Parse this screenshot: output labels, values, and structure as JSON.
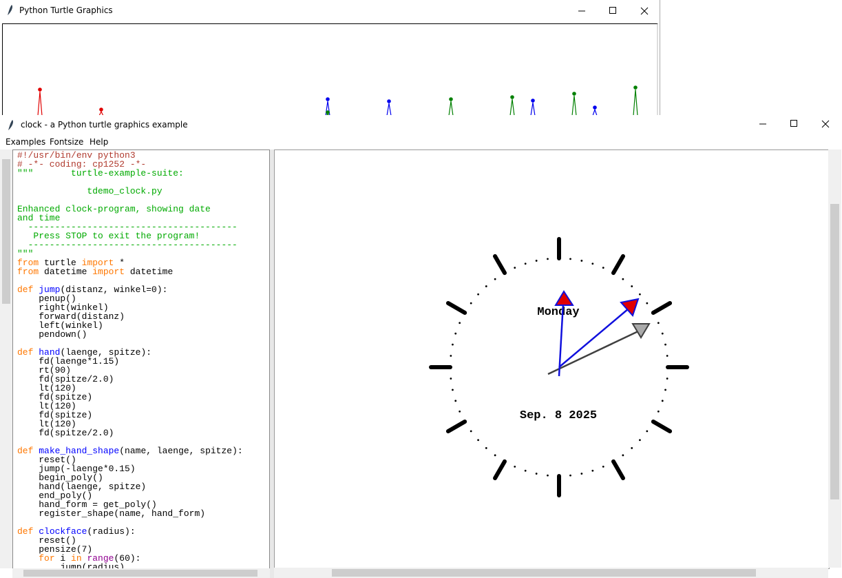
{
  "back_window": {
    "title": "Python Turtle Graphics"
  },
  "front_window": {
    "title": "clock - a Python turtle graphics example",
    "menu": [
      "Examples",
      "Fontsize",
      "Help"
    ],
    "code": [
      [
        {
          "text": "#!/usr/bin/env python3",
          "color": "#b03a2e"
        }
      ],
      [
        {
          "text": "# -*- coding: cp1252 -*-",
          "color": "#b03a2e"
        }
      ],
      [
        {
          "text": "\"\"\"       turtle-example-suite:",
          "color": "#00aa00"
        }
      ],
      [],
      [
        {
          "text": "             tdemo_clock.py",
          "color": "#00aa00"
        }
      ],
      [],
      [
        {
          "text": "Enhanced clock-program, showing date",
          "color": "#00aa00"
        }
      ],
      [
        {
          "text": "and time",
          "color": "#00aa00"
        }
      ],
      [
        {
          "text": "  ---------------------------------------",
          "color": "#00aa00"
        }
      ],
      [
        {
          "text": "   Press STOP to exit the program!",
          "color": "#00aa00"
        }
      ],
      [
        {
          "text": "  ---------------------------------------",
          "color": "#00aa00"
        }
      ],
      [
        {
          "text": "\"\"\"",
          "color": "#00aa00"
        }
      ],
      [
        {
          "text": "from",
          "color": "#ff7700"
        },
        {
          "text": " turtle "
        },
        {
          "text": "import",
          "color": "#ff7700"
        },
        {
          "text": " *"
        }
      ],
      [
        {
          "text": "from",
          "color": "#ff7700"
        },
        {
          "text": " datetime "
        },
        {
          "text": "import",
          "color": "#ff7700"
        },
        {
          "text": " datetime"
        }
      ],
      [],
      [
        {
          "text": "def",
          "color": "#ff7700"
        },
        {
          "text": " "
        },
        {
          "text": "jump",
          "color": "#0000ff"
        },
        {
          "text": "(distanz, winkel=0):"
        }
      ],
      [
        {
          "text": "    penup()"
        }
      ],
      [
        {
          "text": "    right(winkel)"
        }
      ],
      [
        {
          "text": "    forward(distanz)"
        }
      ],
      [
        {
          "text": "    left(winkel)"
        }
      ],
      [
        {
          "text": "    pendown()"
        }
      ],
      [],
      [
        {
          "text": "def",
          "color": "#ff7700"
        },
        {
          "text": " "
        },
        {
          "text": "hand",
          "color": "#0000ff"
        },
        {
          "text": "(laenge, spitze):"
        }
      ],
      [
        {
          "text": "    fd(laenge*1.15)"
        }
      ],
      [
        {
          "text": "    rt(90)"
        }
      ],
      [
        {
          "text": "    fd(spitze/2.0)"
        }
      ],
      [
        {
          "text": "    lt(120)"
        }
      ],
      [
        {
          "text": "    fd(spitze)"
        }
      ],
      [
        {
          "text": "    lt(120)"
        }
      ],
      [
        {
          "text": "    fd(spitze)"
        }
      ],
      [
        {
          "text": "    lt(120)"
        }
      ],
      [
        {
          "text": "    fd(spitze/2.0)"
        }
      ],
      [],
      [
        {
          "text": "def",
          "color": "#ff7700"
        },
        {
          "text": " "
        },
        {
          "text": "make_hand_shape",
          "color": "#0000ff"
        },
        {
          "text": "(name, laenge, spitze):"
        }
      ],
      [
        {
          "text": "    reset()"
        }
      ],
      [
        {
          "text": "    jump(-laenge*0.15)"
        }
      ],
      [
        {
          "text": "    begin_poly()"
        }
      ],
      [
        {
          "text": "    hand(laenge, spitze)"
        }
      ],
      [
        {
          "text": "    end_poly()"
        }
      ],
      [
        {
          "text": "    hand_form = get_poly()"
        }
      ],
      [
        {
          "text": "    register_shape(name, hand_form)"
        }
      ],
      [],
      [
        {
          "text": "def",
          "color": "#ff7700"
        },
        {
          "text": " "
        },
        {
          "text": "clockface",
          "color": "#0000ff"
        },
        {
          "text": "(radius):"
        }
      ],
      [
        {
          "text": "    reset()"
        }
      ],
      [
        {
          "text": "    pensize(7)"
        }
      ],
      [
        {
          "text": "    "
        },
        {
          "text": "for",
          "color": "#ff7700"
        },
        {
          "text": " i "
        },
        {
          "text": "in",
          "color": "#ff7700"
        },
        {
          "text": " "
        },
        {
          "text": "range",
          "color": "#900090"
        },
        {
          "text": "(60):"
        }
      ],
      [
        {
          "text": "        jump(radius)"
        }
      ]
    ],
    "canvas": {
      "day": "Monday",
      "date": "Sep. 8 2025"
    }
  }
}
